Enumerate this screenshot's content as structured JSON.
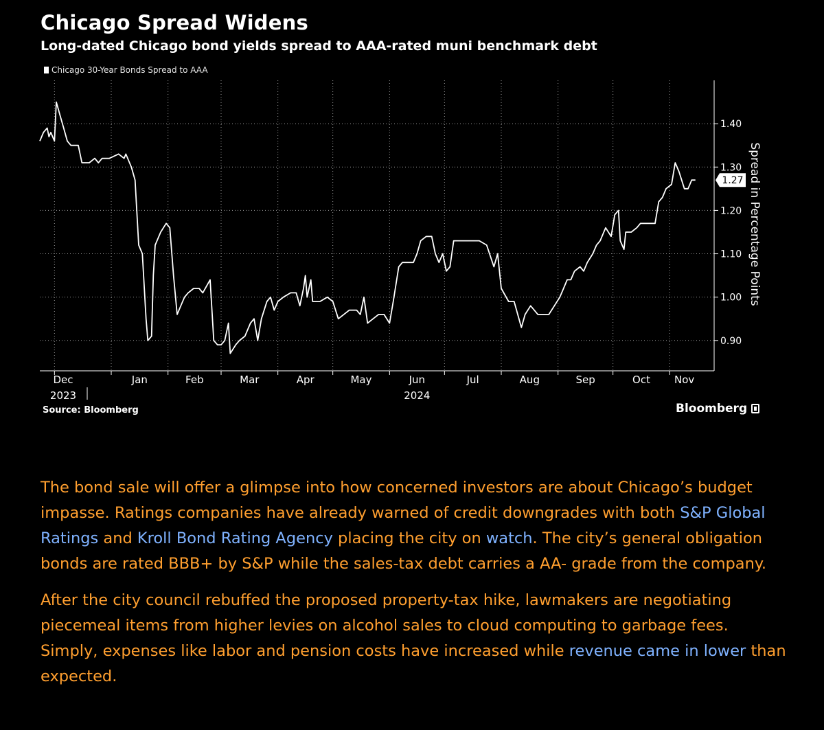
{
  "header": {
    "title": "Chicago Spread Widens",
    "subtitle": "Long-dated Chicago bond yields spread to AAA-rated muni benchmark debt",
    "legend": "Chicago 30-Year Bonds Spread to AAA"
  },
  "footer": {
    "source": "Source: Bloomberg",
    "brand": "Bloomberg"
  },
  "chart_data": {
    "type": "line",
    "title": "Chicago Spread Widens",
    "subtitle": "Long-dated Chicago bond yields spread to AAA-rated muni benchmark debt",
    "ylabel": "Spread in Percentage Points",
    "ylim": [
      0.83,
      1.5
    ],
    "yticks": [
      0.9,
      1.0,
      1.1,
      1.2,
      1.3,
      1.4
    ],
    "ytick_labels": [
      "0.90",
      "1.00",
      "1.10",
      "1.20",
      "1.30",
      "1.40"
    ],
    "month_labels": [
      "Dec",
      "Jan",
      "Feb",
      "Mar",
      "Apr",
      "May",
      "Jun",
      "Jul",
      "Aug",
      "Sep",
      "Oct",
      "Nov"
    ],
    "year_labels": [
      {
        "text": "2023",
        "under": "Dec"
      },
      {
        "text": "2024",
        "under": "Jun"
      }
    ],
    "grid": true,
    "legend_position": "top-left",
    "last_value_label": "1.27",
    "series": [
      {
        "name": "Chicago 30-Year Bonds Spread to AAA",
        "color": "#ffffff",
        "points": [
          [
            "2023-11-23",
            1.36
          ],
          [
            "2023-11-25",
            1.38
          ],
          [
            "2023-11-27",
            1.39
          ],
          [
            "2023-11-28",
            1.37
          ],
          [
            "2023-11-29",
            1.38
          ],
          [
            "2023-12-01",
            1.36
          ],
          [
            "2023-12-02",
            1.45
          ],
          [
            "2023-12-04",
            1.42
          ],
          [
            "2023-12-06",
            1.39
          ],
          [
            "2023-12-08",
            1.36
          ],
          [
            "2023-12-10",
            1.35
          ],
          [
            "2023-12-14",
            1.35
          ],
          [
            "2023-12-16",
            1.31
          ],
          [
            "2023-12-20",
            1.31
          ],
          [
            "2023-12-23",
            1.32
          ],
          [
            "2023-12-25",
            1.31
          ],
          [
            "2023-12-27",
            1.32
          ],
          [
            "2023-12-31",
            1.32
          ],
          [
            "2024-01-05",
            1.33
          ],
          [
            "2024-01-08",
            1.32
          ],
          [
            "2024-01-09",
            1.33
          ],
          [
            "2024-01-12",
            1.3
          ],
          [
            "2024-01-14",
            1.27
          ],
          [
            "2024-01-16",
            1.12
          ],
          [
            "2024-01-18",
            1.1
          ],
          [
            "2024-01-20",
            0.95
          ],
          [
            "2024-01-21",
            0.9
          ],
          [
            "2024-01-23",
            0.91
          ],
          [
            "2024-01-24",
            1.05
          ],
          [
            "2024-01-25",
            1.12
          ],
          [
            "2024-01-28",
            1.15
          ],
          [
            "2024-01-31",
            1.17
          ],
          [
            "2024-02-02",
            1.16
          ],
          [
            "2024-02-04",
            1.05
          ],
          [
            "2024-02-06",
            0.96
          ],
          [
            "2024-02-08",
            0.98
          ],
          [
            "2024-02-10",
            1.0
          ],
          [
            "2024-02-12",
            1.01
          ],
          [
            "2024-02-15",
            1.02
          ],
          [
            "2024-02-18",
            1.02
          ],
          [
            "2024-02-20",
            1.01
          ],
          [
            "2024-02-24",
            1.04
          ],
          [
            "2024-02-26",
            0.9
          ],
          [
            "2024-02-28",
            0.89
          ],
          [
            "2024-03-01",
            0.89
          ],
          [
            "2024-03-03",
            0.9
          ],
          [
            "2024-03-05",
            0.94
          ],
          [
            "2024-03-06",
            0.87
          ],
          [
            "2024-03-09",
            0.89
          ],
          [
            "2024-03-11",
            0.9
          ],
          [
            "2024-03-14",
            0.91
          ],
          [
            "2024-03-17",
            0.94
          ],
          [
            "2024-03-19",
            0.95
          ],
          [
            "2024-03-21",
            0.9
          ],
          [
            "2024-03-23",
            0.95
          ],
          [
            "2024-03-26",
            0.99
          ],
          [
            "2024-03-28",
            1.0
          ],
          [
            "2024-03-30",
            0.97
          ],
          [
            "2024-04-01",
            0.99
          ],
          [
            "2024-04-04",
            1.0
          ],
          [
            "2024-04-08",
            1.01
          ],
          [
            "2024-04-11",
            1.01
          ],
          [
            "2024-04-13",
            0.98
          ],
          [
            "2024-04-15",
            1.02
          ],
          [
            "2024-04-16",
            1.05
          ],
          [
            "2024-04-17",
            1.0
          ],
          [
            "2024-04-19",
            1.04
          ],
          [
            "2024-04-20",
            0.99
          ],
          [
            "2024-04-24",
            0.99
          ],
          [
            "2024-04-28",
            1.0
          ],
          [
            "2024-05-01",
            0.99
          ],
          [
            "2024-05-04",
            0.95
          ],
          [
            "2024-05-07",
            0.96
          ],
          [
            "2024-05-10",
            0.97
          ],
          [
            "2024-05-14",
            0.97
          ],
          [
            "2024-05-16",
            0.96
          ],
          [
            "2024-05-18",
            1.0
          ],
          [
            "2024-05-20",
            0.94
          ],
          [
            "2024-05-23",
            0.95
          ],
          [
            "2024-05-26",
            0.96
          ],
          [
            "2024-05-29",
            0.96
          ],
          [
            "2024-06-01",
            0.94
          ],
          [
            "2024-06-03",
            0.99
          ],
          [
            "2024-06-06",
            1.07
          ],
          [
            "2024-06-08",
            1.08
          ],
          [
            "2024-06-11",
            1.08
          ],
          [
            "2024-06-14",
            1.08
          ],
          [
            "2024-06-16",
            1.1
          ],
          [
            "2024-06-18",
            1.13
          ],
          [
            "2024-06-21",
            1.14
          ],
          [
            "2024-06-24",
            1.14
          ],
          [
            "2024-06-26",
            1.1
          ],
          [
            "2024-06-28",
            1.08
          ],
          [
            "2024-06-30",
            1.1
          ],
          [
            "2024-07-02",
            1.06
          ],
          [
            "2024-07-04",
            1.07
          ],
          [
            "2024-07-06",
            1.13
          ],
          [
            "2024-07-10",
            1.13
          ],
          [
            "2024-07-14",
            1.13
          ],
          [
            "2024-07-20",
            1.13
          ],
          [
            "2024-07-24",
            1.12
          ],
          [
            "2024-07-28",
            1.07
          ],
          [
            "2024-07-30",
            1.1
          ],
          [
            "2024-08-01",
            1.02
          ],
          [
            "2024-08-05",
            0.99
          ],
          [
            "2024-08-08",
            0.99
          ],
          [
            "2024-08-12",
            0.93
          ],
          [
            "2024-08-14",
            0.96
          ],
          [
            "2024-08-17",
            0.98
          ],
          [
            "2024-08-19",
            0.97
          ],
          [
            "2024-08-21",
            0.96
          ],
          [
            "2024-08-24",
            0.96
          ],
          [
            "2024-08-27",
            0.96
          ],
          [
            "2024-08-30",
            0.98
          ],
          [
            "2024-09-02",
            1.0
          ],
          [
            "2024-09-04",
            1.02
          ],
          [
            "2024-09-06",
            1.04
          ],
          [
            "2024-09-08",
            1.04
          ],
          [
            "2024-09-10",
            1.06
          ],
          [
            "2024-09-13",
            1.07
          ],
          [
            "2024-09-15",
            1.06
          ],
          [
            "2024-09-17",
            1.08
          ],
          [
            "2024-09-20",
            1.1
          ],
          [
            "2024-09-22",
            1.12
          ],
          [
            "2024-09-24",
            1.13
          ],
          [
            "2024-09-27",
            1.16
          ],
          [
            "2024-09-30",
            1.14
          ],
          [
            "2024-10-02",
            1.19
          ],
          [
            "2024-10-04",
            1.2
          ],
          [
            "2024-10-05",
            1.13
          ],
          [
            "2024-10-07",
            1.11
          ],
          [
            "2024-10-08",
            1.15
          ],
          [
            "2024-10-11",
            1.15
          ],
          [
            "2024-10-14",
            1.16
          ],
          [
            "2024-10-16",
            1.17
          ],
          [
            "2024-10-21",
            1.17
          ],
          [
            "2024-10-24",
            1.17
          ],
          [
            "2024-10-26",
            1.22
          ],
          [
            "2024-10-28",
            1.23
          ],
          [
            "2024-10-30",
            1.25
          ],
          [
            "2024-11-02",
            1.26
          ],
          [
            "2024-11-04",
            1.31
          ],
          [
            "2024-11-06",
            1.29
          ],
          [
            "2024-11-09",
            1.25
          ],
          [
            "2024-11-11",
            1.25
          ],
          [
            "2024-11-13",
            1.27
          ],
          [
            "2024-11-15",
            1.27
          ]
        ]
      }
    ]
  },
  "article": {
    "p1": [
      {
        "text": "The bond sale will offer a glimpse into how concerned investors are about Chicago’s budget impasse. Ratings companies have already warned of credit downgrades with both ",
        "link": false
      },
      {
        "text": "S&P Global Ratings",
        "link": true
      },
      {
        "text": " and ",
        "link": false
      },
      {
        "text": "Kroll Bond Rating Agency",
        "link": true
      },
      {
        "text": " placing the city on ",
        "link": false
      },
      {
        "text": "watch",
        "link": true
      },
      {
        "text": ". The city’s general obligation bonds are rated BBB+ by S&P while the sales-tax debt carries a AA- grade from the company.",
        "link": false
      }
    ],
    "p2": [
      {
        "text": "After the city council rebuffed the proposed property-tax hike, lawmakers are negotiating piecemeal items from higher levies on alcohol sales to cloud computing to garbage fees. Simply, expenses like labor and pension costs have increased while ",
        "link": false
      },
      {
        "text": "revenue came in lower",
        "link": true
      },
      {
        "text": " than expected.",
        "link": false
      }
    ]
  }
}
